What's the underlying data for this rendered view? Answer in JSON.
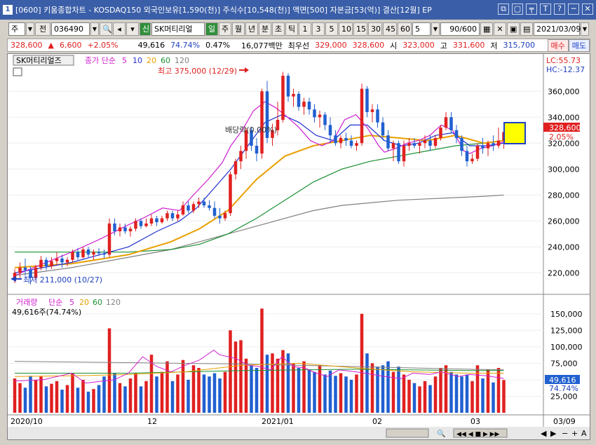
{
  "window": {
    "icon_label": "1",
    "title": "[0600] 키움종합차트 - KOSDAQ150 외국인보유[1,590(천)] 주식수[10,548(천)] 액면[500] 자본금[53(억)] 결산[12월] EP",
    "buttons": [
      "⧉",
      "▢",
      "╤",
      "T",
      "?",
      "─",
      "✕"
    ]
  },
  "toolbar": {
    "market": "주",
    "prev": "전",
    "code": "036490",
    "name_badge": "신",
    "name": "SK머티리얼",
    "periods": [
      "일",
      "주",
      "월",
      "년",
      "분",
      "초",
      "틱"
    ],
    "active_period": "일",
    "intervals": [
      "1",
      "3",
      "5",
      "10",
      "15",
      "30",
      "45",
      "60"
    ],
    "interval_select": "5",
    "count": "90/600",
    "date": "2021/03/09"
  },
  "pricebar": {
    "price": "328,600",
    "change": "6,600",
    "change_pct": "+2.05%",
    "volume": "49,616",
    "vol_ratio": "74.74%",
    "turnover": "0.47%",
    "amount": "16,077백만",
    "ask_label": "최우선",
    "ask": "329,000",
    "bid": "328,600",
    "open_label": "시",
    "open": "323,000",
    "high_label": "고",
    "high": "331,600",
    "low_label": "저",
    "low": "315,700",
    "buy": "매수",
    "sell": "매도"
  },
  "price_panel": {
    "legend_name": "SK머티리얼즈",
    "legend_type": "종가 단순",
    "ma_labels": [
      "5",
      "10",
      "20",
      "60",
      "120"
    ],
    "ma_colors": [
      "#d020d0",
      "#2030d0",
      "#e8a000",
      "#189030",
      "#808080"
    ],
    "max_label": "최고 375,000 (12/29)",
    "min_label": "최저 211,000 (10/27)",
    "annotation": "배당락(0.00%)",
    "lc": "LC:55.73",
    "hc": "HC:-12.37",
    "last_price_tag": "328,600",
    "last_pct_tag": "2.05%"
  },
  "volume_panel": {
    "legend_name": "거래량",
    "legend_type": "단순",
    "ma_labels": [
      "5",
      "20",
      "60",
      "120"
    ],
    "ma_colors": [
      "#d020d0",
      "#e8a000",
      "#189030",
      "#808080"
    ],
    "current": "49,616주(74.74%)",
    "last_tag": "49,616",
    "last_pct": "74.74%"
  },
  "x_labels": [
    "2020/10",
    "12",
    "2021/01",
    "02",
    "03"
  ],
  "last_date": "03/09",
  "chart_data": {
    "type": "candlestick",
    "y_ticks": [
      220000,
      240000,
      260000,
      280000,
      300000,
      320000,
      340000,
      360000
    ],
    "ylim": [
      205000,
      378000
    ],
    "vol_ticks": [
      25000,
      50000,
      75000,
      100000,
      125000,
      150000
    ],
    "vol_ylim": [
      0,
      170000
    ],
    "candles": [
      [
        216000,
        223000,
        212000,
        220000,
        52000
      ],
      [
        220000,
        228000,
        216000,
        224000,
        45000
      ],
      [
        224000,
        231000,
        218000,
        222000,
        38000
      ],
      [
        222000,
        225000,
        211000,
        216000,
        56000
      ],
      [
        216000,
        226000,
        214000,
        224000,
        50000
      ],
      [
        224000,
        233000,
        222000,
        230000,
        55000
      ],
      [
        230000,
        232000,
        222000,
        225000,
        40000
      ],
      [
        225000,
        232000,
        223000,
        229000,
        44000
      ],
      [
        229000,
        236000,
        226000,
        231000,
        48000
      ],
      [
        231000,
        234000,
        224000,
        228000,
        35000
      ],
      [
        228000,
        232000,
        225000,
        230000,
        42000
      ],
      [
        230000,
        238000,
        228000,
        236000,
        60000
      ],
      [
        236000,
        239000,
        230000,
        232000,
        38000
      ],
      [
        232000,
        240000,
        231000,
        238000,
        50000
      ],
      [
        238000,
        240000,
        232000,
        234000,
        32000
      ],
      [
        234000,
        238000,
        230000,
        236000,
        36000
      ],
      [
        236000,
        239000,
        233000,
        235000,
        42000
      ],
      [
        235000,
        238000,
        231000,
        234000,
        55000
      ],
      [
        234000,
        262000,
        232000,
        258000,
        128000
      ],
      [
        258000,
        262000,
        249000,
        252000,
        60000
      ],
      [
        252000,
        258000,
        248000,
        255000,
        45000
      ],
      [
        255000,
        258000,
        250000,
        252000,
        40000
      ],
      [
        252000,
        256000,
        248000,
        254000,
        52000
      ],
      [
        254000,
        262000,
        252000,
        260000,
        60000
      ],
      [
        260000,
        262000,
        254000,
        256000,
        40000
      ],
      [
        256000,
        262000,
        255000,
        258000,
        48000
      ],
      [
        258000,
        265000,
        256000,
        262000,
        88000
      ],
      [
        262000,
        264000,
        256000,
        259000,
        55000
      ],
      [
        259000,
        264000,
        258000,
        262000,
        62000
      ],
      [
        262000,
        268000,
        260000,
        266000,
        78000
      ],
      [
        266000,
        268000,
        260000,
        262000,
        48000
      ],
      [
        262000,
        268000,
        260000,
        265000,
        58000
      ],
      [
        265000,
        275000,
        264000,
        272000,
        80000
      ],
      [
        272000,
        275000,
        266000,
        268000,
        50000
      ],
      [
        268000,
        275000,
        266000,
        273000,
        72000
      ],
      [
        273000,
        278000,
        270000,
        275000,
        68000
      ],
      [
        275000,
        278000,
        270000,
        272000,
        58000
      ],
      [
        272000,
        276000,
        268000,
        270000,
        55000
      ],
      [
        270000,
        275000,
        262000,
        264000,
        60000
      ],
      [
        264000,
        270000,
        258000,
        262000,
        52000
      ],
      [
        262000,
        268000,
        260000,
        266000,
        62000
      ],
      [
        266000,
        298000,
        264000,
        296000,
        125000
      ],
      [
        296000,
        308000,
        292000,
        306000,
        108000
      ],
      [
        306000,
        318000,
        300000,
        314000,
        110000
      ],
      [
        314000,
        332000,
        308000,
        330000,
        82000
      ],
      [
        330000,
        332000,
        314000,
        318000,
        72000
      ],
      [
        318000,
        324000,
        306000,
        312000,
        68000
      ],
      [
        312000,
        362000,
        308000,
        360000,
        158000
      ],
      [
        360000,
        368000,
        320000,
        324000,
        88000
      ],
      [
        324000,
        335000,
        318000,
        330000,
        90000
      ],
      [
        330000,
        352000,
        326000,
        338000,
        82000
      ],
      [
        338000,
        375000,
        336000,
        372000,
        95000
      ],
      [
        372000,
        374000,
        352000,
        356000,
        90000
      ],
      [
        356000,
        362000,
        348000,
        358000,
        75000
      ],
      [
        358000,
        360000,
        345000,
        348000,
        68000
      ],
      [
        348000,
        355000,
        342000,
        352000,
        78000
      ],
      [
        352000,
        355000,
        342000,
        346000,
        66000
      ],
      [
        346000,
        350000,
        336000,
        340000,
        62000
      ],
      [
        340000,
        345000,
        332000,
        342000,
        72000
      ],
      [
        342000,
        344000,
        330000,
        334000,
        58000
      ],
      [
        334000,
        340000,
        320000,
        326000,
        64000
      ],
      [
        326000,
        330000,
        318000,
        320000,
        56000
      ],
      [
        320000,
        326000,
        316000,
        324000,
        60000
      ],
      [
        324000,
        328000,
        318000,
        322000,
        55000
      ],
      [
        322000,
        326000,
        316000,
        318000,
        50000
      ],
      [
        318000,
        322000,
        314000,
        320000,
        58000
      ],
      [
        320000,
        366000,
        318000,
        362000,
        150000
      ],
      [
        362000,
        364000,
        340000,
        344000,
        90000
      ],
      [
        344000,
        350000,
        336000,
        346000,
        75000
      ],
      [
        346000,
        350000,
        332000,
        336000,
        70000
      ],
      [
        336000,
        340000,
        322000,
        326000,
        72000
      ],
      [
        326000,
        330000,
        314000,
        316000,
        78000
      ],
      [
        316000,
        322000,
        306000,
        320000,
        62000
      ],
      [
        320000,
        322000,
        304000,
        306000,
        70000
      ],
      [
        306000,
        322000,
        302000,
        318000,
        58000
      ],
      [
        318000,
        324000,
        314000,
        320000,
        50000
      ],
      [
        320000,
        324000,
        316000,
        318000,
        45000
      ],
      [
        318000,
        322000,
        312000,
        320000,
        40000
      ],
      [
        320000,
        326000,
        316000,
        322000,
        48000
      ],
      [
        322000,
        326000,
        314000,
        318000,
        42000
      ],
      [
        318000,
        326000,
        316000,
        324000,
        55000
      ],
      [
        324000,
        334000,
        322000,
        332000,
        68000
      ],
      [
        332000,
        344000,
        330000,
        340000,
        72000
      ],
      [
        340000,
        344000,
        328000,
        330000,
        62000
      ],
      [
        330000,
        334000,
        320000,
        324000,
        58000
      ],
      [
        324000,
        326000,
        310000,
        314000,
        55000
      ],
      [
        314000,
        318000,
        302000,
        306000,
        58000
      ],
      [
        306000,
        312000,
        304000,
        308000,
        48000
      ],
      [
        308000,
        320000,
        306000,
        318000,
        72000
      ],
      [
        318000,
        324000,
        312000,
        316000,
        52000
      ],
      [
        316000,
        322000,
        310000,
        320000,
        66000
      ],
      [
        320000,
        326000,
        314000,
        318000,
        46000
      ],
      [
        318000,
        332000,
        316000,
        322000,
        68000
      ],
      [
        322000,
        331600,
        315700,
        328600,
        49616
      ]
    ],
    "ma5": [
      [
        0,
        218000
      ],
      [
        10,
        227000
      ],
      [
        20,
        236000
      ],
      [
        30,
        246000
      ],
      [
        40,
        257000
      ],
      [
        45,
        262000
      ],
      [
        52,
        270000
      ],
      [
        58,
        268000
      ],
      [
        62,
        278000
      ],
      [
        68,
        292000
      ],
      [
        73,
        305000
      ],
      [
        76,
        318000
      ],
      [
        80,
        330000
      ],
      [
        84,
        345000
      ],
      [
        88,
        352000
      ],
      [
        92,
        347000
      ],
      [
        96,
        340000
      ],
      [
        100,
        332000
      ],
      [
        104,
        322000
      ],
      [
        108,
        318000
      ],
      [
        112,
        322000
      ],
      [
        116,
        338000
      ],
      [
        120,
        342000
      ],
      [
        124,
        332000
      ],
      [
        128,
        318000
      ],
      [
        130,
        313000
      ],
      [
        134,
        316000
      ],
      [
        138,
        320000
      ],
      [
        142,
        322000
      ],
      [
        146,
        326000
      ],
      [
        150,
        334000
      ],
      [
        154,
        330000
      ],
      [
        158,
        314000
      ],
      [
        160,
        312000
      ],
      [
        164,
        316000
      ],
      [
        168,
        318000
      ],
      [
        172,
        321000
      ]
    ],
    "ma10": [
      [
        0,
        220000
      ],
      [
        20,
        228000
      ],
      [
        40,
        240000
      ],
      [
        50,
        252000
      ],
      [
        58,
        260000
      ],
      [
        64,
        270000
      ],
      [
        70,
        285000
      ],
      [
        76,
        300000
      ],
      [
        82,
        318000
      ],
      [
        88,
        336000
      ],
      [
        94,
        342000
      ],
      [
        100,
        336000
      ],
      [
        106,
        326000
      ],
      [
        112,
        322000
      ],
      [
        118,
        334000
      ],
      [
        124,
        334000
      ],
      [
        130,
        322000
      ],
      [
        136,
        318000
      ],
      [
        142,
        320000
      ],
      [
        148,
        326000
      ],
      [
        154,
        328000
      ],
      [
        160,
        318000
      ],
      [
        166,
        318000
      ],
      [
        172,
        320000
      ]
    ],
    "ma20": [
      [
        0,
        224000
      ],
      [
        20,
        227000
      ],
      [
        40,
        234000
      ],
      [
        55,
        244000
      ],
      [
        65,
        254000
      ],
      [
        75,
        268000
      ],
      [
        85,
        292000
      ],
      [
        95,
        310000
      ],
      [
        105,
        318000
      ],
      [
        115,
        322000
      ],
      [
        125,
        326000
      ],
      [
        135,
        324000
      ],
      [
        145,
        322000
      ],
      [
        155,
        326000
      ],
      [
        165,
        320000
      ],
      [
        172,
        322000
      ]
    ],
    "ma60": [
      [
        0,
        236000
      ],
      [
        20,
        236000
      ],
      [
        40,
        236000
      ],
      [
        55,
        238000
      ],
      [
        65,
        242000
      ],
      [
        75,
        250000
      ],
      [
        85,
        262000
      ],
      [
        95,
        276000
      ],
      [
        105,
        290000
      ],
      [
        115,
        300000
      ],
      [
        125,
        306000
      ],
      [
        135,
        310000
      ],
      [
        145,
        314000
      ],
      [
        155,
        318000
      ],
      [
        165,
        320000
      ],
      [
        172,
        322000
      ]
    ],
    "ma120": [
      [
        0,
        218000
      ],
      [
        20,
        224000
      ],
      [
        40,
        232000
      ],
      [
        55,
        238000
      ],
      [
        65,
        244000
      ],
      [
        75,
        250000
      ],
      [
        85,
        256000
      ],
      [
        95,
        262000
      ],
      [
        105,
        268000
      ],
      [
        115,
        272000
      ],
      [
        125,
        274000
      ],
      [
        135,
        276000
      ],
      [
        145,
        277000
      ],
      [
        155,
        278000
      ],
      [
        165,
        279000
      ],
      [
        172,
        280000
      ]
    ],
    "vma5": [
      [
        0,
        48000
      ],
      [
        10,
        50000
      ],
      [
        20,
        60000
      ],
      [
        25,
        45000
      ],
      [
        35,
        50000
      ],
      [
        40,
        60000
      ],
      [
        45,
        85000
      ],
      [
        50,
        70000
      ],
      [
        55,
        62000
      ],
      [
        60,
        72000
      ],
      [
        65,
        80000
      ],
      [
        70,
        95000
      ],
      [
        72,
        88000
      ],
      [
        78,
        82000
      ],
      [
        82,
        72000
      ],
      [
        86,
        70000
      ],
      [
        90,
        65000
      ],
      [
        94,
        85000
      ],
      [
        98,
        70000
      ],
      [
        102,
        68000
      ],
      [
        106,
        60000
      ],
      [
        110,
        55000
      ],
      [
        114,
        65000
      ],
      [
        120,
        62000
      ],
      [
        126,
        58000
      ],
      [
        130,
        55000
      ],
      [
        136,
        52000
      ],
      [
        140,
        60000
      ],
      [
        146,
        58000
      ],
      [
        150,
        62000
      ],
      [
        156,
        55000
      ],
      [
        160,
        58000
      ],
      [
        166,
        56000
      ],
      [
        172,
        52000
      ]
    ],
    "vma20": [
      [
        0,
        55000
      ],
      [
        20,
        56000
      ],
      [
        40,
        58000
      ],
      [
        60,
        62000
      ],
      [
        80,
        72000
      ],
      [
        100,
        75000
      ],
      [
        120,
        68000
      ],
      [
        140,
        62000
      ],
      [
        160,
        60000
      ],
      [
        172,
        60000
      ]
    ],
    "vma60": [
      [
        0,
        60000
      ],
      [
        40,
        60000
      ],
      [
        80,
        64000
      ],
      [
        120,
        66000
      ],
      [
        160,
        64000
      ],
      [
        172,
        64000
      ]
    ],
    "vma120": [
      [
        0,
        78000
      ],
      [
        40,
        76000
      ],
      [
        80,
        74000
      ],
      [
        120,
        70000
      ],
      [
        160,
        66000
      ],
      [
        172,
        65000
      ]
    ]
  }
}
